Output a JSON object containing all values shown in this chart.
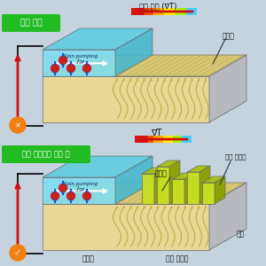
{
  "bg_color": "#c5d3de",
  "panel1_label": "기존 구조",
  "panel2_label": "나노 구조물이 있을 때",
  "label_bg": "#22bb22",
  "top_title": "온도 구배 (∇T)",
  "spin_wave_label1": "스핀파",
  "spin_wave_label2": "스핀파",
  "nano_label": "나노 구조물",
  "base_label": "기판",
  "magnetic_label": "자성 절연체",
  "metal_label": "금속층",
  "spin_pumping": "Spin pumping",
  "gradient_T1": "나노 구조물",
  "gradient_T2": "∇T",
  "box_front_color": "#e8d898",
  "box_top_color": "#d8c878",
  "box_right_color": "#b8b8c0",
  "metal_front_color": "#80ddf0",
  "metal_top_color": "#60cce0",
  "metal_right_color": "#48b8cc",
  "wave_color": "#c0a830",
  "nano_front": "#c8e020",
  "nano_top": "#a8c010",
  "nano_right": "#88a000",
  "circuit_color": "#111111",
  "arrow_red": "#cc1111",
  "orange_circle": "#f08010"
}
